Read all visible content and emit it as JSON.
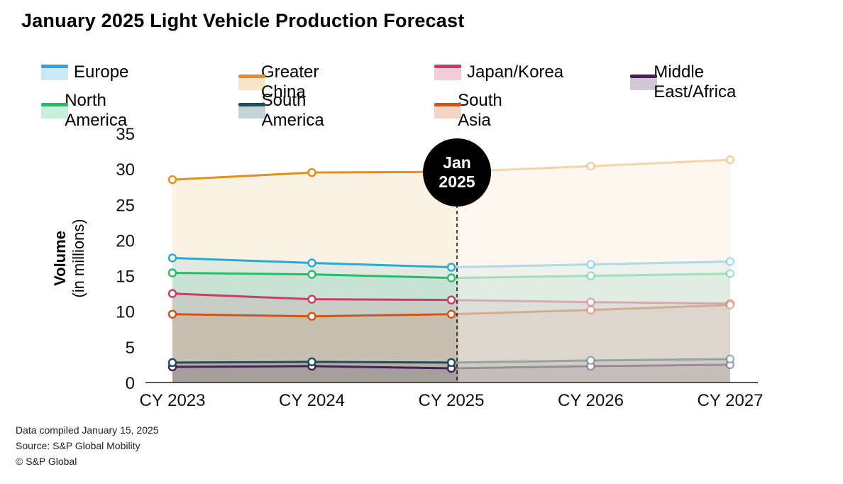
{
  "title": "January 2025 Light Vehicle Production Forecast",
  "footnotes": [
    "Data compiled January 15, 2025",
    "Source: S&P Global Mobility",
    "© S&P Global"
  ],
  "marker": {
    "line1": "Jan",
    "line2": "2025",
    "at": "CY 2025"
  },
  "chart_data": {
    "type": "line",
    "title": "January 2025 Light Vehicle Production Forecast",
    "xlabel": "",
    "ylabel": "Volume",
    "ylabel_sub": "(in millions)",
    "categories": [
      "CY 2023",
      "CY 2024",
      "CY 2025",
      "CY 2026",
      "CY 2027"
    ],
    "ylim": [
      0,
      35
    ],
    "yticks": [
      0,
      5,
      10,
      15,
      20,
      25,
      30,
      35
    ],
    "forecast_start_index": 2,
    "legend_position": "top",
    "series": [
      {
        "name": "Europe",
        "color": "#2aa9d6",
        "values": [
          17.5,
          16.8,
          16.2,
          16.6,
          17.0
        ]
      },
      {
        "name": "Greater China",
        "color": "#e0901c",
        "values": [
          28.5,
          29.5,
          29.6,
          30.4,
          31.3
        ]
      },
      {
        "name": "Japan/Korea",
        "color": "#c93b6a",
        "values": [
          12.5,
          11.7,
          11.6,
          11.3,
          11.1
        ]
      },
      {
        "name": "Middle East/Africa",
        "color": "#4a1f57",
        "values": [
          2.2,
          2.3,
          2.0,
          2.3,
          2.5
        ]
      },
      {
        "name": "North America",
        "color": "#22bf6a",
        "values": [
          15.4,
          15.2,
          14.7,
          15.0,
          15.3
        ]
      },
      {
        "name": "South America",
        "color": "#1c4f5c",
        "values": [
          2.8,
          2.9,
          2.8,
          3.1,
          3.3
        ]
      },
      {
        "name": "South Asia",
        "color": "#cf5416",
        "values": [
          9.6,
          9.3,
          9.6,
          10.2,
          10.9
        ]
      }
    ]
  }
}
